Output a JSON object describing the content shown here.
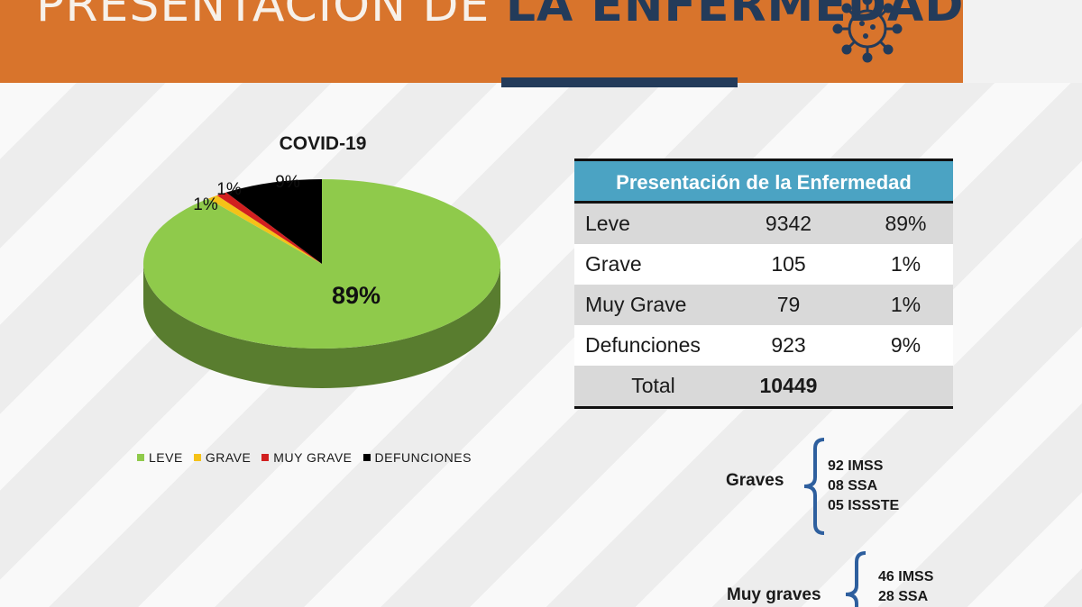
{
  "header": {
    "title_light": "PRESENTACIÓN DE",
    "title_bold": "LA ENFERMEDAD",
    "icon": "virus-icon",
    "accent_color": "#d8742c",
    "navy_color": "#233b5a"
  },
  "chart_data": {
    "type": "pie",
    "style": "3d",
    "title": "COVID-19",
    "categories": [
      "LEVE",
      "GRAVE",
      "MUY GRAVE",
      "DEFUNCIONES"
    ],
    "values": [
      89,
      1,
      1,
      9
    ],
    "data_labels": [
      "89%",
      "1%",
      "1%",
      "9%"
    ],
    "colors": [
      "#8fca4b",
      "#f5c218",
      "#d11f1f",
      "#000000"
    ],
    "legend_position": "bottom"
  },
  "table": {
    "header": "Presentación de la Enfermedad",
    "rows": [
      {
        "label": "Leve",
        "count": "9342",
        "percent": "89%"
      },
      {
        "label": "Grave",
        "count": "105",
        "percent": "1%"
      },
      {
        "label": "Muy Grave",
        "count": "79",
        "percent": "1%"
      },
      {
        "label": "Defunciones",
        "count": "923",
        "percent": "9%"
      }
    ],
    "total_label": "Total",
    "total_value": "10449"
  },
  "breakdowns": {
    "graves": {
      "label": "Graves",
      "items": [
        "92 IMSS",
        "08 SSA",
        "05 ISSSTE"
      ]
    },
    "muy_graves": {
      "label": "Muy graves",
      "items": [
        "46 IMSS",
        "28 SSA"
      ]
    }
  }
}
